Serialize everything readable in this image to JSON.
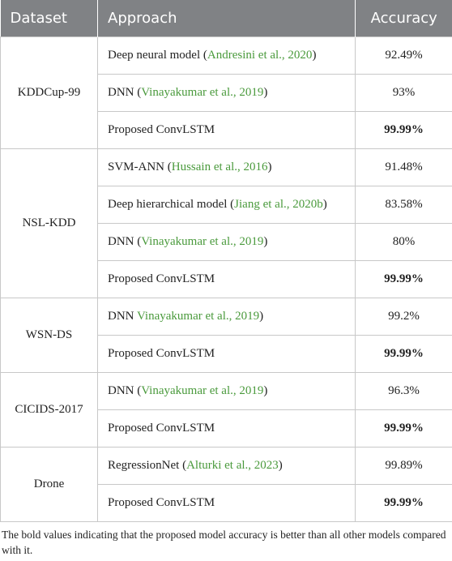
{
  "header": {
    "dataset": "Dataset",
    "approach": "Approach",
    "accuracy": "Accuracy"
  },
  "groups": [
    {
      "dataset": "KDDCup-99",
      "rows": [
        {
          "prefix": "Deep neural model (",
          "cite": "Andresini et al., 2020",
          "suffix": ")",
          "accuracy": "92.49%",
          "bold": false
        },
        {
          "prefix": "DNN (",
          "cite": "Vinayakumar et al., 2019",
          "suffix": ")",
          "accuracy": "93%",
          "bold": false
        },
        {
          "prefix": "Proposed ConvLSTM",
          "accuracy": "99.99%",
          "bold": true
        }
      ]
    },
    {
      "dataset": "NSL-KDD",
      "rows": [
        {
          "prefix": "SVM-ANN (",
          "cite": "Hussain et al., 2016",
          "suffix": ")",
          "accuracy": "91.48%",
          "bold": false
        },
        {
          "prefix": "Deep hierarchical model (",
          "cite": "Jiang et al., 2020b",
          "suffix": ")",
          "accuracy": "83.58%",
          "bold": false
        },
        {
          "prefix": "DNN (",
          "cite": "Vinayakumar et al., 2019",
          "suffix": ")",
          "accuracy": "80%",
          "bold": false
        },
        {
          "prefix": "Proposed ConvLSTM",
          "accuracy": "99.99%",
          "bold": true
        }
      ]
    },
    {
      "dataset": "WSN-DS",
      "rows": [
        {
          "prefix": "DNN ",
          "cite": "Vinayakumar et al., 2019",
          "suffix": ")",
          "accuracy": "99.2%",
          "bold": false
        },
        {
          "prefix": "Proposed ConvLSTM",
          "accuracy": "99.99%",
          "bold": true
        }
      ]
    },
    {
      "dataset": "CICIDS-2017",
      "rows": [
        {
          "prefix": "DNN (",
          "cite": "Vinayakumar et al., 2019",
          "suffix": ")",
          "accuracy": "96.3%",
          "bold": false
        },
        {
          "prefix": "Proposed ConvLSTM",
          "accuracy": "99.99%",
          "bold": true
        }
      ]
    },
    {
      "dataset": "Drone",
      "rows": [
        {
          "prefix": "RegressionNet (",
          "cite": "Alturki et al., 2023",
          "suffix": ")",
          "accuracy": "99.89%",
          "bold": false
        },
        {
          "prefix": "Proposed ConvLSTM",
          "accuracy": "99.99%",
          "bold": true
        }
      ]
    }
  ],
  "footnote": "The bold values indicating that the proposed model accuracy is better than all other models compared with it."
}
